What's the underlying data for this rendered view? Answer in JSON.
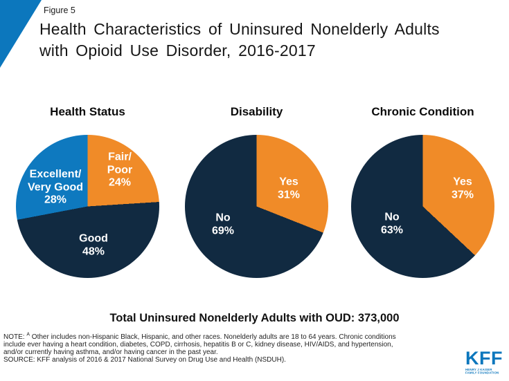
{
  "colors": {
    "kff_blue": "#0C77BD",
    "orange": "#F08B28",
    "navy": "#112A41",
    "blue": "#0E79BF"
  },
  "header": {
    "figure_label": "Figure 5",
    "title_line1": "Health Characteristics of Uninsured Nonelderly Adults",
    "title_line2": "with Opioid Use Disorder, 2016-2017"
  },
  "chart_data": [
    {
      "type": "pie",
      "title": "Health Status",
      "labels": [
        "Fair/Poor",
        "Good",
        "Excellent/Very Good"
      ],
      "values": [
        24,
        48,
        28
      ],
      "colors": [
        "#F08B28",
        "#112A41",
        "#0E79BF"
      ],
      "slice_labels": [
        "Fair/\nPoor\n24%",
        "Good\n48%",
        "Excellent/\nVery Good\n28%"
      ],
      "start_angle_deg": 0,
      "direction": "clockwise",
      "legend": "none"
    },
    {
      "type": "pie",
      "title": "Disability",
      "labels": [
        "Yes",
        "No"
      ],
      "values": [
        31,
        69
      ],
      "colors": [
        "#F08B28",
        "#112A41"
      ],
      "slice_labels": [
        "Yes\n31%",
        "No\n69%"
      ],
      "start_angle_deg": 0,
      "direction": "clockwise",
      "legend": "none"
    },
    {
      "type": "pie",
      "title": "Chronic Condition",
      "labels": [
        "Yes",
        "No"
      ],
      "values": [
        37,
        63
      ],
      "colors": [
        "#F08B28",
        "#112A41"
      ],
      "slice_labels": [
        "Yes\n37%",
        "No\n63%"
      ],
      "start_angle_deg": 0,
      "direction": "clockwise",
      "legend": "none"
    }
  ],
  "total_callout": "Total Uninsured Nonelderly Adults with OUD: 373,000",
  "notes": {
    "note_label": "NOTE:",
    "note_superscript": "A",
    "note_line1_rest": "Other includes non-Hispanic Black, Hispanic, and other races. Nonelderly adults are 18 to 64 years. Chronic conditions",
    "note_line2": "include ever having a heart condition, diabetes, COPD, cirrhosis, hepatitis B or C, kidney disease, HIV/AIDS,  and hypertension,",
    "note_line3": "and/or currently having asthma, and/or having cancer in the past year.",
    "source": "SOURCE: KFF analysis of 2016 & 2017 National Survey on Drug Use and Health (NSDUH)."
  },
  "logo": {
    "wordmark": "KFF",
    "tagline_line1": "HENRY J KAISER",
    "tagline_line2": "FAMILY FOUNDATION"
  }
}
